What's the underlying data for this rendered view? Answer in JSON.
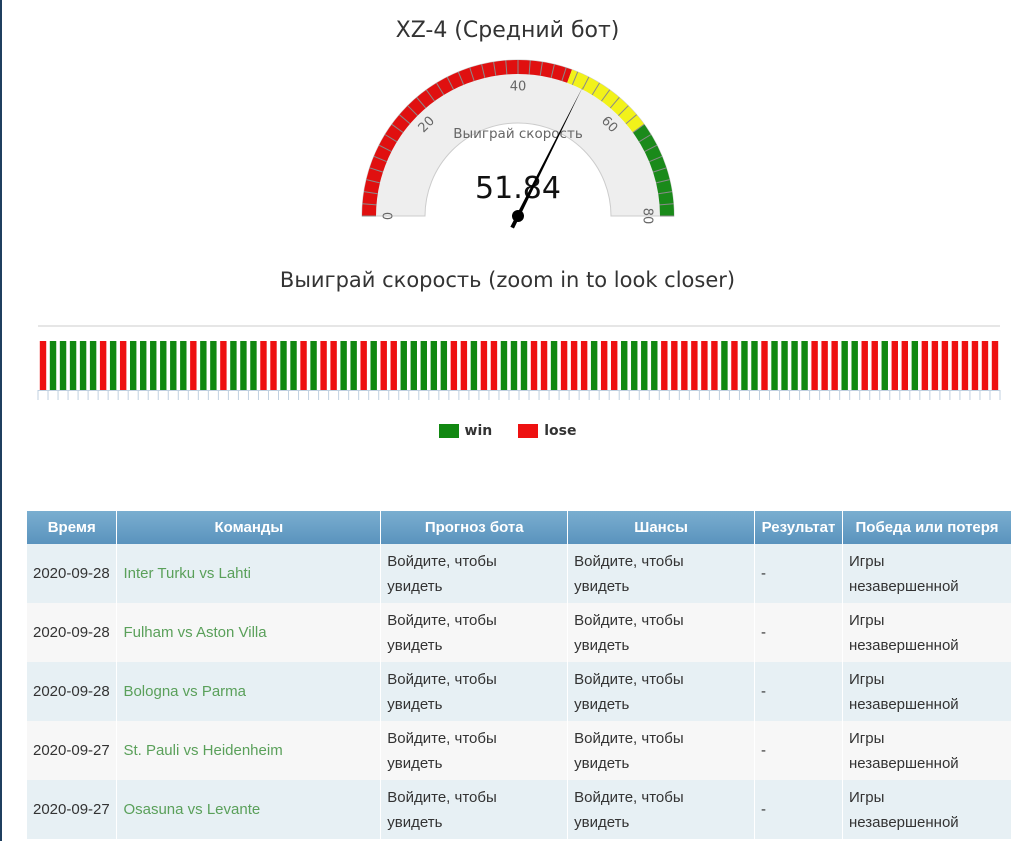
{
  "gauge": {
    "title": "XZ-4 (Средний бот)",
    "label": "Выиграй скорость",
    "value": 51.84,
    "value_text": "51.84",
    "min": 0,
    "max": 80,
    "ticks": [
      "0",
      "20",
      "40",
      "60",
      "80"
    ],
    "bands": [
      {
        "from": 0,
        "to": 49,
        "color": "#e01010"
      },
      {
        "from": 49,
        "to": 64,
        "color": "#f2f21a"
      },
      {
        "from": 64,
        "to": 80,
        "color": "#1a8a1a"
      }
    ]
  },
  "chart_data": {
    "type": "bar",
    "title": "Выиграй скорость (zoom in to look closer)",
    "legend": [
      {
        "name": "win",
        "color": "#118811"
      },
      {
        "name": "lose",
        "color": "#ee1111"
      }
    ],
    "outcomes": [
      "lose",
      "win",
      "win",
      "win",
      "win",
      "win",
      "lose",
      "win",
      "lose",
      "win",
      "win",
      "win",
      "win",
      "win",
      "win",
      "lose",
      "win",
      "win",
      "lose",
      "win",
      "win",
      "win",
      "lose",
      "lose",
      "win",
      "win",
      "lose",
      "win",
      "lose",
      "lose",
      "win",
      "win",
      "lose",
      "win",
      "lose",
      "lose",
      "win",
      "win",
      "win",
      "win",
      "win",
      "lose",
      "lose",
      "win",
      "lose",
      "lose",
      "win",
      "win",
      "win",
      "lose",
      "lose",
      "win",
      "lose",
      "lose",
      "lose",
      "win",
      "lose",
      "lose",
      "win",
      "win",
      "win",
      "win",
      "lose",
      "lose",
      "lose",
      "lose",
      "lose",
      "lose",
      "win",
      "lose",
      "win",
      "win",
      "lose",
      "win",
      "win",
      "win",
      "win",
      "lose",
      "lose",
      "lose",
      "win",
      "win",
      "lose",
      "lose",
      "win",
      "lose",
      "lose",
      "win",
      "lose",
      "lose",
      "lose",
      "lose",
      "lose",
      "lose",
      "lose",
      "lose"
    ]
  },
  "table": {
    "headers": [
      "Время",
      "Команды",
      "Прогноз бота",
      "Шансы",
      "Результат",
      "Победа или потеря"
    ],
    "rows": [
      {
        "date": "2020-09-28",
        "teams": "Inter Turku vs Lahti",
        "prediction": [
          "Войдите, чтобы",
          "увидеть"
        ],
        "odds": [
          "Войдите, чтобы",
          "увидеть"
        ],
        "result": "-",
        "outcome": [
          "Игры",
          "незавершенной"
        ]
      },
      {
        "date": "2020-09-28",
        "teams": "Fulham vs Aston Villa",
        "prediction": [
          "Войдите, чтобы",
          "увидеть"
        ],
        "odds": [
          "Войдите, чтобы",
          "увидеть"
        ],
        "result": "-",
        "outcome": [
          "Игры",
          "незавершенной"
        ]
      },
      {
        "date": "2020-09-28",
        "teams": "Bologna vs Parma",
        "prediction": [
          "Войдите, чтобы",
          "увидеть"
        ],
        "odds": [
          "Войдите, чтобы",
          "увидеть"
        ],
        "result": "-",
        "outcome": [
          "Игры",
          "незавершенной"
        ]
      },
      {
        "date": "2020-09-27",
        "teams": "St. Pauli vs Heidenheim",
        "prediction": [
          "Войдите, чтобы",
          "увидеть"
        ],
        "odds": [
          "Войдите, чтобы",
          "увидеть"
        ],
        "result": "-",
        "outcome": [
          "Игры",
          "незавершенной"
        ]
      },
      {
        "date": "2020-09-27",
        "teams": "Osasuna vs Levante",
        "prediction": [
          "Войдите, чтобы",
          "увидеть"
        ],
        "odds": [
          "Войдите, чтобы",
          "увидеть"
        ],
        "result": "-",
        "outcome": [
          "Игры",
          "незавершенной"
        ]
      }
    ]
  }
}
